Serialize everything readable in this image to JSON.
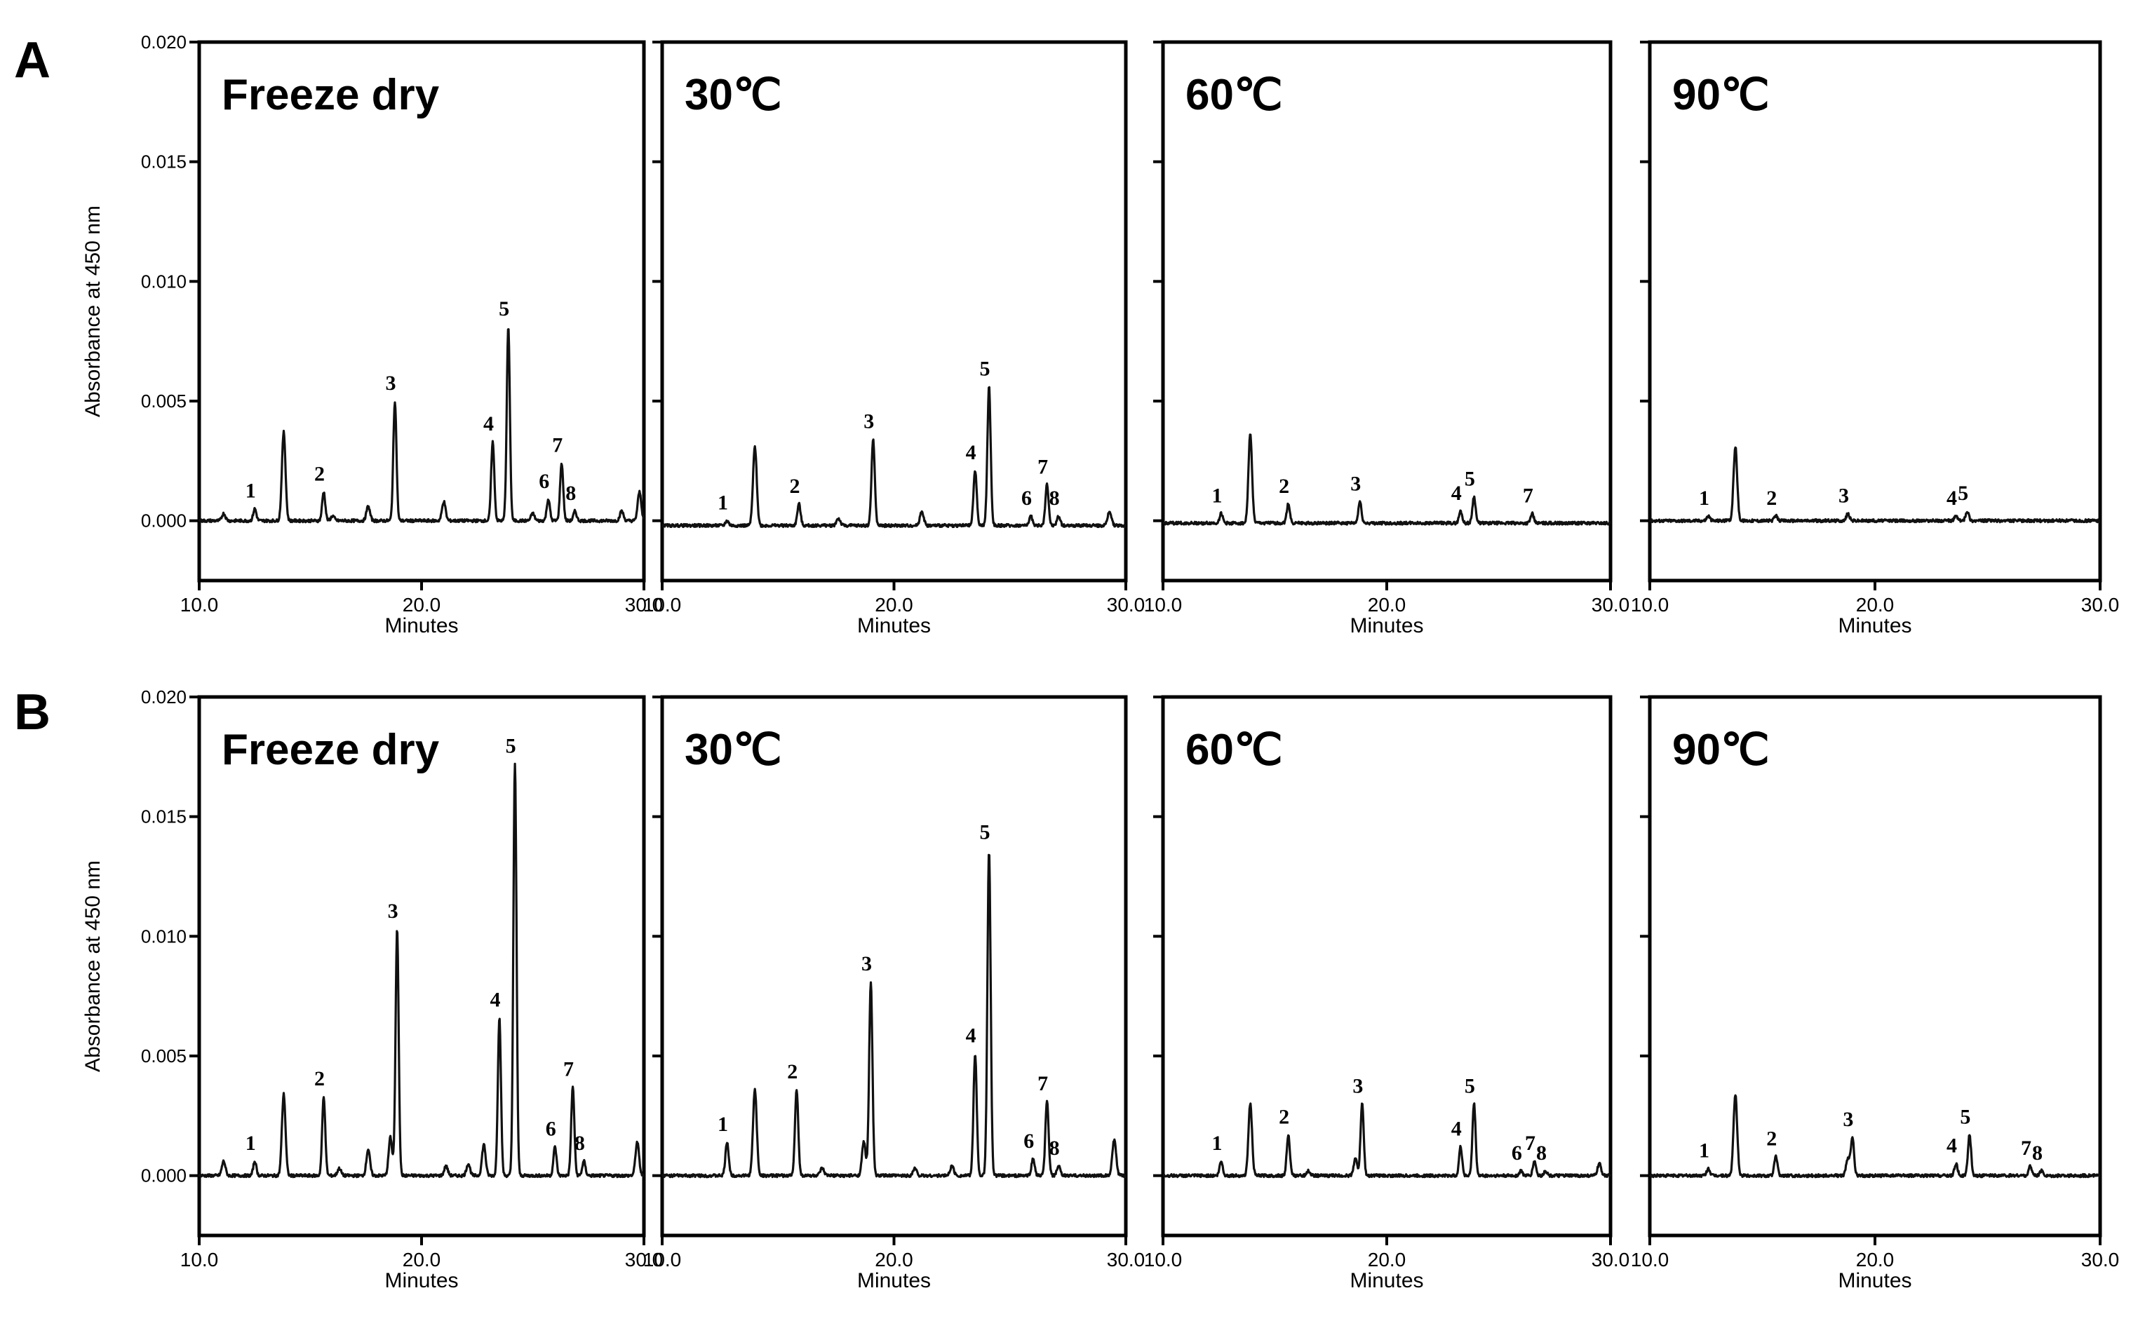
{
  "figure": {
    "y_axis_label": "Absorbance at 450 nm",
    "x_axis_label": "Minutes",
    "conditions": [
      "Freeze dry",
      "30℃",
      "60℃",
      "90℃"
    ]
  },
  "chart_data": [
    {
      "panel": "A",
      "type": "line",
      "ylabel": "Absorbance at 450 nm",
      "xlabel": "Minutes",
      "ylim": [
        -0.0025,
        0.02
      ],
      "xlim": [
        10.0,
        30.0
      ],
      "y_ticks": [
        "0.000",
        "0.005",
        "0.010",
        "0.015",
        "0.020"
      ],
      "x_ticks": [
        "10.0",
        "20.0",
        "30.0"
      ],
      "subplots": [
        {
          "title": "Freeze dry",
          "baseline": 0.0,
          "extra_peaks": [
            [
              11.1,
              0.0003
            ],
            [
              13.8,
              0.0037
            ],
            [
              16.0,
              0.0002
            ],
            [
              17.6,
              0.0006
            ],
            [
              21.0,
              0.0008
            ],
            [
              25.0,
              0.0003
            ],
            [
              29.0,
              0.0004
            ],
            [
              29.8,
              0.0012
            ]
          ],
          "peaks": [
            {
              "label": "1",
              "time": 12.5,
              "height": 0.0005
            },
            {
              "label": "2",
              "time": 15.6,
              "height": 0.0012
            },
            {
              "label": "3",
              "time": 18.8,
              "height": 0.005
            },
            {
              "label": "4",
              "time": 23.2,
              "height": 0.0033
            },
            {
              "label": "5",
              "time": 23.9,
              "height": 0.0081
            },
            {
              "label": "6",
              "time": 25.7,
              "height": 0.0009
            },
            {
              "label": "7",
              "time": 26.3,
              "height": 0.0024
            },
            {
              "label": "8",
              "time": 26.9,
              "height": 0.0004
            }
          ]
        },
        {
          "title": "30℃",
          "baseline": -0.0002,
          "extra_peaks": [
            [
              14.0,
              0.0033
            ],
            [
              17.6,
              0.0003
            ],
            [
              21.2,
              0.0006
            ],
            [
              29.3,
              0.0006
            ]
          ],
          "peaks": [
            {
              "label": "1",
              "time": 12.8,
              "height": 0.0002
            },
            {
              "label": "2",
              "time": 15.9,
              "height": 0.0009
            },
            {
              "label": "3",
              "time": 19.1,
              "height": 0.0036
            },
            {
              "label": "4",
              "time": 23.5,
              "height": 0.0023
            },
            {
              "label": "5",
              "time": 24.1,
              "height": 0.0058
            },
            {
              "label": "6",
              "time": 25.9,
              "height": 0.0004
            },
            {
              "label": "7",
              "time": 26.6,
              "height": 0.0017
            },
            {
              "label": "8",
              "time": 27.1,
              "height": 0.0004
            }
          ]
        },
        {
          "title": "60℃",
          "baseline": -0.0001,
          "extra_peaks": [
            [
              13.9,
              0.0037
            ]
          ],
          "peaks": [
            {
              "label": "1",
              "time": 12.6,
              "height": 0.0004
            },
            {
              "label": "2",
              "time": 15.6,
              "height": 0.0008
            },
            {
              "label": "3",
              "time": 18.8,
              "height": 0.0009
            },
            {
              "label": "4",
              "time": 23.3,
              "height": 0.0005
            },
            {
              "label": "5",
              "time": 23.9,
              "height": 0.0011
            },
            {
              "label": "7",
              "time": 26.5,
              "height": 0.0004
            }
          ]
        },
        {
          "title": "90℃",
          "baseline": 0.0,
          "extra_peaks": [
            [
              13.8,
              0.0031
            ]
          ],
          "peaks": [
            {
              "label": "1",
              "time": 12.6,
              "height": 0.0002
            },
            {
              "label": "2",
              "time": 15.6,
              "height": 0.0002
            },
            {
              "label": "3",
              "time": 18.8,
              "height": 0.0003
            },
            {
              "label": "4",
              "time": 23.6,
              "height": 0.0002
            },
            {
              "label": "5",
              "time": 24.1,
              "height": 0.0004
            }
          ]
        }
      ]
    },
    {
      "panel": "B",
      "type": "line",
      "ylabel": "Absorbance at 450 nm",
      "xlabel": "Minutes",
      "ylim": [
        -0.0025,
        0.02
      ],
      "xlim": [
        10.0,
        30.0
      ],
      "y_ticks": [
        "0.000",
        "0.005",
        "0.010",
        "0.015",
        "0.020"
      ],
      "x_ticks": [
        "10.0",
        "20.0",
        "30.0"
      ],
      "subplots": [
        {
          "title": "Freeze dry",
          "baseline": 0.0,
          "extra_peaks": [
            [
              11.1,
              0.0006
            ],
            [
              13.8,
              0.0034
            ],
            [
              16.3,
              0.0003
            ],
            [
              17.6,
              0.0011
            ],
            [
              18.6,
              0.0016
            ],
            [
              21.1,
              0.0004
            ],
            [
              22.1,
              0.0005
            ],
            [
              22.8,
              0.0013
            ],
            [
              29.7,
              0.0014
            ]
          ],
          "peaks": [
            {
              "label": "1",
              "time": 12.5,
              "height": 0.0006
            },
            {
              "label": "2",
              "time": 15.6,
              "height": 0.0033
            },
            {
              "label": "3",
              "time": 18.9,
              "height": 0.0103
            },
            {
              "label": "4",
              "time": 23.5,
              "height": 0.0066
            },
            {
              "label": "5",
              "time": 24.2,
              "height": 0.0172
            },
            {
              "label": "6",
              "time": 26.0,
              "height": 0.0012
            },
            {
              "label": "7",
              "time": 26.8,
              "height": 0.0037
            },
            {
              "label": "8",
              "time": 27.3,
              "height": 0.0006
            }
          ]
        },
        {
          "title": "30℃",
          "baseline": 0.0,
          "extra_peaks": [
            [
              14.0,
              0.0036
            ],
            [
              16.9,
              0.0003
            ],
            [
              18.7,
              0.0014
            ],
            [
              20.9,
              0.0003
            ],
            [
              22.5,
              0.0004
            ],
            [
              29.5,
              0.0015
            ]
          ],
          "peaks": [
            {
              "label": "1",
              "time": 12.8,
              "height": 0.0014
            },
            {
              "label": "2",
              "time": 15.8,
              "height": 0.0036
            },
            {
              "label": "3",
              "time": 19.0,
              "height": 0.0081
            },
            {
              "label": "4",
              "time": 23.5,
              "height": 0.0051
            },
            {
              "label": "5",
              "time": 24.1,
              "height": 0.0136
            },
            {
              "label": "6",
              "time": 26.0,
              "height": 0.0007
            },
            {
              "label": "7",
              "time": 26.6,
              "height": 0.0031
            },
            {
              "label": "8",
              "time": 27.1,
              "height": 0.0004
            }
          ]
        },
        {
          "title": "60℃",
          "baseline": 0.0,
          "extra_peaks": [
            [
              13.9,
              0.003
            ],
            [
              16.5,
              0.0002
            ],
            [
              18.6,
              0.0007
            ],
            [
              29.5,
              0.0005
            ]
          ],
          "peaks": [
            {
              "label": "1",
              "time": 12.6,
              "height": 0.0006
            },
            {
              "label": "2",
              "time": 15.6,
              "height": 0.0017
            },
            {
              "label": "3",
              "time": 18.9,
              "height": 0.003
            },
            {
              "label": "4",
              "time": 23.3,
              "height": 0.0012
            },
            {
              "label": "5",
              "time": 23.9,
              "height": 0.003
            },
            {
              "label": "6",
              "time": 26.0,
              "height": 0.0002
            },
            {
              "label": "7",
              "time": 26.6,
              "height": 0.0006
            },
            {
              "label": "8",
              "time": 27.1,
              "height": 0.0002
            }
          ]
        },
        {
          "title": "90℃",
          "baseline": 0.0,
          "extra_peaks": [
            [
              13.8,
              0.0034
            ],
            [
              18.8,
              0.0007
            ]
          ],
          "peaks": [
            {
              "label": "1",
              "time": 12.6,
              "height": 0.0003
            },
            {
              "label": "2",
              "time": 15.6,
              "height": 0.0008
            },
            {
              "label": "3",
              "time": 19.0,
              "height": 0.0016
            },
            {
              "label": "4",
              "time": 23.6,
              "height": 0.0005
            },
            {
              "label": "5",
              "time": 24.2,
              "height": 0.0017
            },
            {
              "label": "7",
              "time": 26.9,
              "height": 0.0004
            },
            {
              "label": "8",
              "time": 27.4,
              "height": 0.0002
            }
          ]
        }
      ]
    }
  ]
}
